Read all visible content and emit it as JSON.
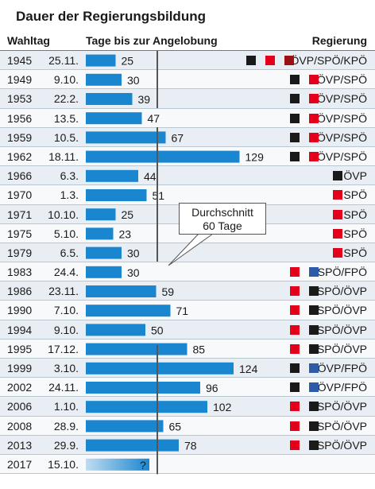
{
  "title": "Dauer der Regierungsbildung",
  "headers": {
    "year": "Wahltag",
    "bars": "Tage bis zur Angelobung",
    "government": "Regierung"
  },
  "average": {
    "value": 60,
    "line1": "Durchschnitt",
    "line2": "60 Tage"
  },
  "party_colors": {
    "ÖVP": "#1a1a1a",
    "SPÖ": "#e3001b",
    "KPÖ": "#9b1111",
    "FPÖ": "#2c5ba8"
  },
  "bar_color": "#1a86d0",
  "chart_data": {
    "type": "bar",
    "orientation": "horizontal",
    "title": "Dauer der Regierungsbildung",
    "xlabel": "Tage bis zur Angelobung",
    "categories": [
      "1945",
      "1949",
      "1953",
      "1956",
      "1959",
      "1962",
      "1966",
      "1970",
      "1971",
      "1975",
      "1979",
      "1983",
      "1986",
      "1990",
      "1994",
      "1995",
      "1999",
      "2002",
      "2006",
      "2008",
      "2013",
      "2017"
    ],
    "dates": [
      "25.11.",
      "9.10.",
      "22.2.",
      "13.5.",
      "10.5.",
      "18.11.",
      "6.3.",
      "1.3.",
      "10.10.",
      "5.10.",
      "6.5.",
      "24.4.",
      "23.11.",
      "7.10.",
      "9.10.",
      "17.12.",
      "3.10.",
      "24.11.",
      "1.10.",
      "28.9.",
      "29.9.",
      "15.10."
    ],
    "values": [
      25,
      30,
      39,
      47,
      67,
      129,
      44,
      51,
      25,
      23,
      30,
      30,
      59,
      71,
      50,
      85,
      124,
      96,
      102,
      65,
      78,
      null
    ],
    "value_labels": [
      "25",
      "30",
      "39",
      "47",
      "67",
      "129",
      "44",
      "51",
      "25",
      "23",
      "30",
      "30",
      "59",
      "71",
      "50",
      "85",
      "124",
      "96",
      "102",
      "65",
      "78",
      "?"
    ],
    "government": [
      "ÖVP/SPÖ/KPÖ",
      "ÖVP/SPÖ",
      "ÖVP/SPÖ",
      "ÖVP/SPÖ",
      "ÖVP/SPÖ",
      "ÖVP/SPÖ",
      "ÖVP",
      "SPÖ",
      "SPÖ",
      "SPÖ",
      "SPÖ",
      "SPÖ/FPÖ",
      "SPÖ/ÖVP",
      "SPÖ/ÖVP",
      "SPÖ/ÖVP",
      "SPÖ/ÖVP",
      "ÖVP/FPÖ",
      "ÖVP/FPÖ",
      "SPÖ/ÖVP",
      "SPÖ/ÖVP",
      "SPÖ/ÖVP",
      ""
    ],
    "reference_line": 60,
    "xlim": [
      0,
      140
    ]
  }
}
